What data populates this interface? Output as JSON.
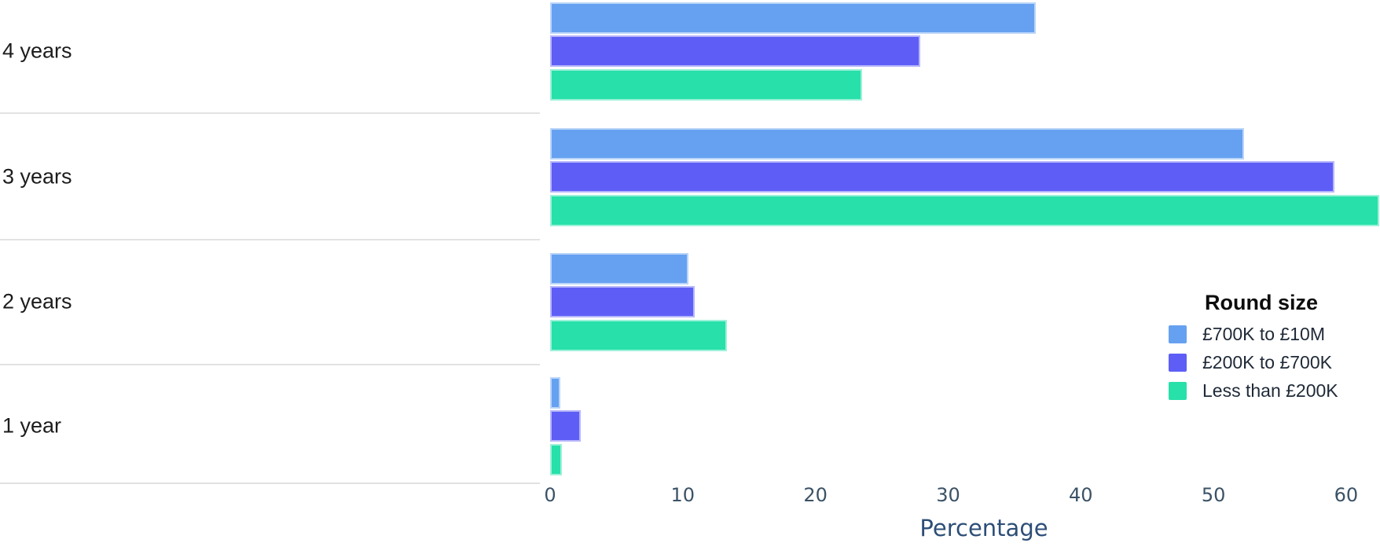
{
  "chart_data": {
    "type": "bar",
    "orientation": "horizontal",
    "xlabel": "Percentage",
    "categories": [
      "4 years",
      "3 years",
      "2 years",
      "1 year"
    ],
    "series": [
      {
        "name": "£700K to £10M",
        "color": "#66a1f1",
        "values": [
          36.6,
          52.3,
          10.4,
          0.75
        ]
      },
      {
        "name": "£200K to £700K",
        "color": "#5e5ef7",
        "values": [
          27.9,
          59.1,
          10.9,
          2.3
        ]
      },
      {
        "name": "Less than £200K",
        "color": "#27e0aa",
        "values": [
          23.5,
          62.5,
          13.3,
          0.9
        ]
      }
    ],
    "x_ticks": [
      0,
      10,
      20,
      30,
      40,
      50,
      60
    ],
    "xlim": [
      0,
      62.55
    ],
    "legend_title": "Round size",
    "legend_position": "right-middle",
    "grid": "off",
    "colors": {
      "tick_label": "#3b5266",
      "axis_label": "#2d4e77",
      "category_label": "#1c1c1c",
      "separator": "#e2e2e2"
    }
  }
}
